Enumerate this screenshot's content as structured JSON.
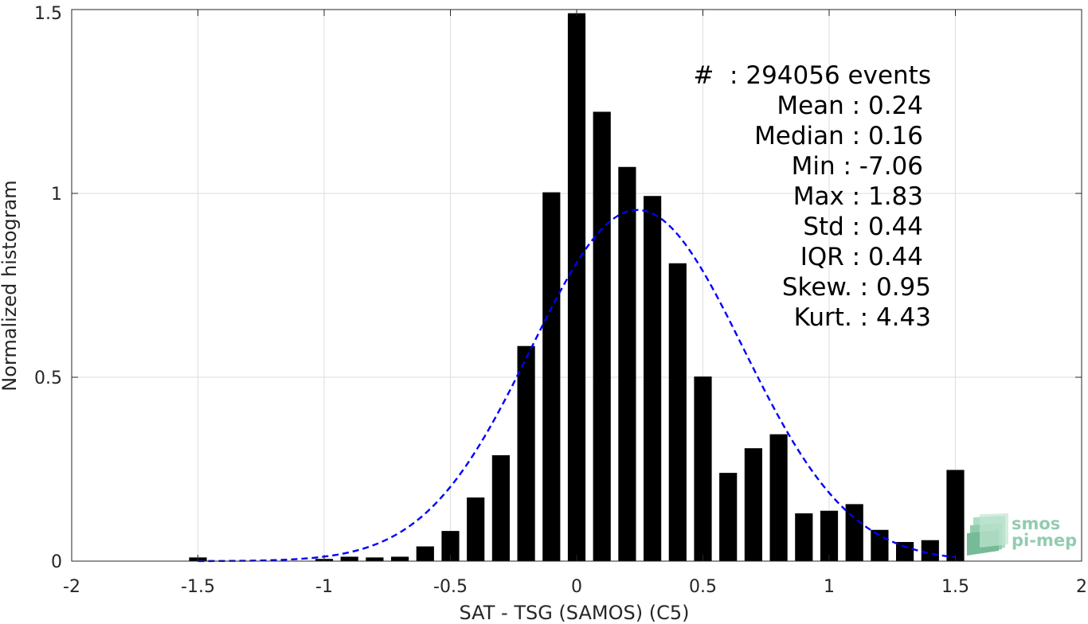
{
  "chart_data": {
    "type": "bar",
    "xlabel": "SAT - TSG (SAMOS) (C5)",
    "ylabel": "Normalized histogram",
    "xlim": [
      -2,
      2
    ],
    "ylim": [
      0,
      1.5
    ],
    "x_ticks": [
      -2,
      -1.5,
      -1,
      -0.5,
      0,
      0.5,
      1,
      1.5,
      2
    ],
    "x_tick_labels": [
      "-2",
      "-1.5",
      "-1",
      "-0.5",
      "0",
      "0.5",
      "1",
      "1.5",
      "2"
    ],
    "y_ticks": [
      0,
      0.5,
      1,
      1.5
    ],
    "y_tick_labels": [
      "0",
      "0.5",
      "1",
      "1.5"
    ],
    "grid": true,
    "bar_color": "#000000",
    "bins": [
      {
        "x": -1.5,
        "value": 0.01
      },
      {
        "x": -1.0,
        "value": 0.006
      },
      {
        "x": -0.9,
        "value": 0.012
      },
      {
        "x": -0.8,
        "value": 0.01
      },
      {
        "x": -0.7,
        "value": 0.012
      },
      {
        "x": -0.6,
        "value": 0.04
      },
      {
        "x": -0.5,
        "value": 0.082
      },
      {
        "x": -0.4,
        "value": 0.173
      },
      {
        "x": -0.3,
        "value": 0.288
      },
      {
        "x": -0.2,
        "value": 0.585
      },
      {
        "x": -0.1,
        "value": 1.003
      },
      {
        "x": 0.0,
        "value": 1.49
      },
      {
        "x": 0.1,
        "value": 1.222
      },
      {
        "x": 0.2,
        "value": 1.072
      },
      {
        "x": 0.3,
        "value": 0.993
      },
      {
        "x": 0.4,
        "value": 0.81
      },
      {
        "x": 0.5,
        "value": 0.502
      },
      {
        "x": 0.6,
        "value": 0.24
      },
      {
        "x": 0.7,
        "value": 0.307
      },
      {
        "x": 0.8,
        "value": 0.345
      },
      {
        "x": 0.9,
        "value": 0.13
      },
      {
        "x": 1.0,
        "value": 0.137
      },
      {
        "x": 1.1,
        "value": 0.155
      },
      {
        "x": 1.2,
        "value": 0.085
      },
      {
        "x": 1.3,
        "value": 0.052
      },
      {
        "x": 1.4,
        "value": 0.057
      },
      {
        "x": 1.5,
        "value": 0.248
      }
    ],
    "fit_curve": {
      "type": "gaussian",
      "mean": 0.24,
      "std": 0.42,
      "peak": 0.955,
      "x_range": [
        -1.5,
        1.5
      ],
      "color": "#0000ff",
      "style": "dashed"
    },
    "annotations": [
      "#  : 294056 events",
      "Mean : 0.24",
      "Median : 0.16",
      "Min : -7.06",
      "Max : 1.83",
      "Std : 0.44",
      "IQR : 0.44",
      "Skew. : 0.95",
      "Kurt. : 4.43"
    ]
  },
  "logo": {
    "line1": "smos",
    "line2": "pi-mep",
    "color": "#7fc4a0"
  }
}
